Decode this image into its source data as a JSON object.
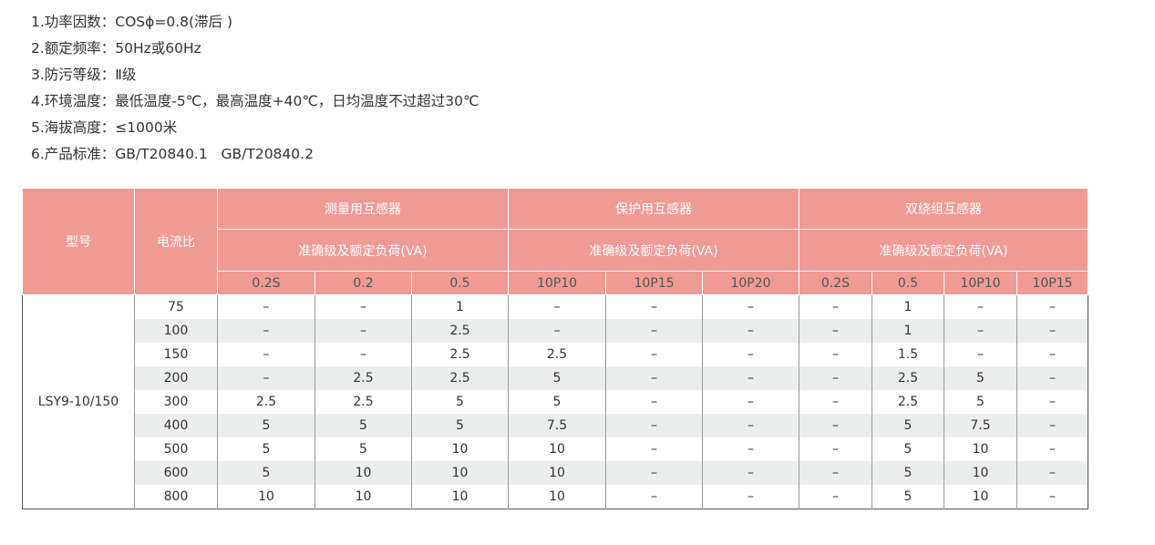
{
  "specs": [
    "1.功率因数：COSϕ=0.8(滞后 )",
    "2.额定频率：50Hz或60Hz",
    "3.防污等级：Ⅱ级",
    "4.环境温度：最低温度-5℃，最高温度+40℃，日均温度不过超过30℃",
    "5.海拔高度：≤1000米",
    "6.产品标准：GB/T20840.1   GB/T20840.2"
  ],
  "table": {
    "col_model": "型号",
    "col_ratio": "电流比",
    "groups": [
      {
        "name": "测量用互感器",
        "sub": "准确级及额定负荷(VA)",
        "cols": [
          "0.2S",
          "0.2",
          "0.5"
        ]
      },
      {
        "name": "保护用互感器",
        "sub": "准确级及额定负荷(VA)",
        "cols": [
          "10P10",
          "10P15",
          "10P20"
        ]
      },
      {
        "name": "双绕组互感器",
        "sub": "准确级及额定负荷(VA)",
        "cols": [
          "0.2S",
          "0.5",
          "10P10",
          "10P15"
        ]
      }
    ],
    "model": "LSY9-10/150",
    "rows": [
      [
        "75",
        "–",
        "–",
        "1",
        "–",
        "–",
        "–",
        "–",
        "1",
        "–",
        "–"
      ],
      [
        "100",
        "–",
        "–",
        "2.5",
        "–",
        "–",
        "–",
        "–",
        "1",
        "–",
        "–"
      ],
      [
        "150",
        "–",
        "–",
        "2.5",
        "2.5",
        "–",
        "–",
        "–",
        "1.5",
        "–",
        "–"
      ],
      [
        "200",
        "–",
        "2.5",
        "2.5",
        "5",
        "–",
        "–",
        "–",
        "2.5",
        "5",
        "–"
      ],
      [
        "300",
        "2.5",
        "2.5",
        "5",
        "5",
        "–",
        "–",
        "–",
        "2.5",
        "5",
        "–"
      ],
      [
        "400",
        "5",
        "5",
        "5",
        "7.5",
        "–",
        "–",
        "–",
        "5",
        "7.5",
        "–"
      ],
      [
        "500",
        "5",
        "5",
        "10",
        "10",
        "–",
        "–",
        "–",
        "5",
        "10",
        "–"
      ],
      [
        "600",
        "5",
        "10",
        "10",
        "10",
        "–",
        "–",
        "–",
        "5",
        "10",
        "–"
      ],
      [
        "800",
        "10",
        "10",
        "10",
        "10",
        "–",
        "–",
        "–",
        "5",
        "10",
        "–"
      ]
    ]
  }
}
